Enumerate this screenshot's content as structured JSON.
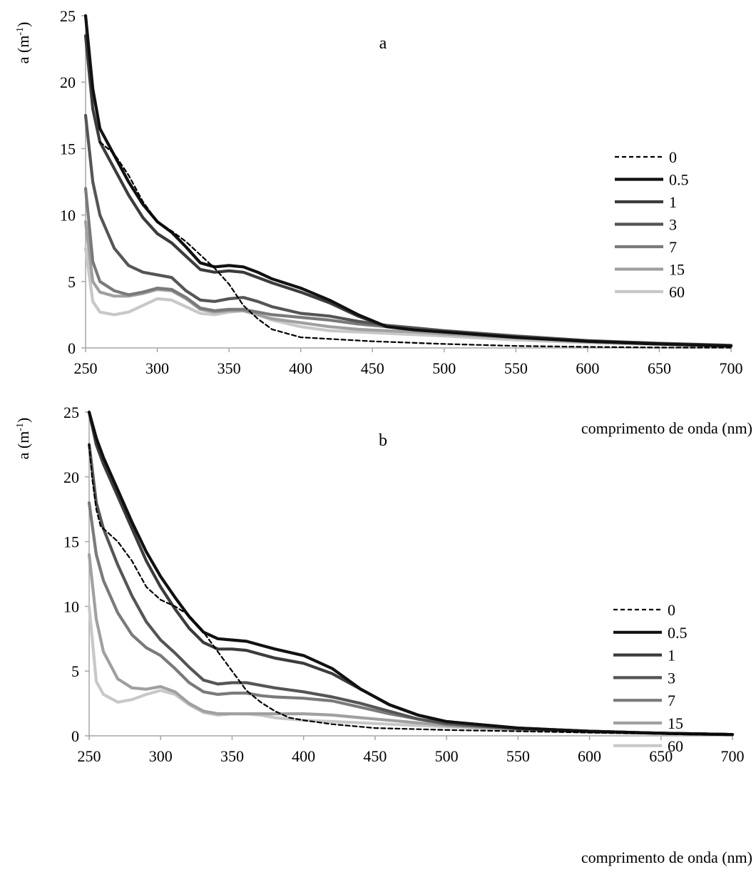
{
  "chart_data": [
    {
      "type": "line",
      "panel_label": "a",
      "xlabel": "comprimento de onda (nm)",
      "ylabel_main": "a (m",
      "ylabel_sup": "-1",
      "ylabel_close": ")",
      "xlim": [
        250,
        700
      ],
      "ylim": [
        0,
        25
      ],
      "x_ticks": [
        250,
        300,
        350,
        400,
        450,
        500,
        550,
        600,
        650,
        700
      ],
      "y_ticks": [
        0,
        5,
        10,
        15,
        20,
        25
      ],
      "legend_position": "right",
      "series": [
        {
          "name": "0",
          "color": "#000000",
          "dash": true,
          "x": [
            260,
            270,
            280,
            290,
            300,
            310,
            320,
            330,
            340,
            350,
            360,
            370,
            380,
            400,
            450,
            500,
            550,
            600,
            650,
            700
          ],
          "y": [
            15.5,
            14.6,
            13.0,
            11.0,
            9.5,
            8.8,
            8.0,
            7.0,
            6.0,
            4.8,
            3.2,
            2.2,
            1.4,
            0.8,
            0.5,
            0.3,
            0.15,
            0.08,
            0.03,
            0.02
          ]
        },
        {
          "name": "0.5",
          "color": "#111111",
          "dash": false,
          "x": [
            250,
            255,
            260,
            270,
            280,
            290,
            300,
            310,
            320,
            330,
            340,
            350,
            360,
            370,
            380,
            400,
            420,
            440,
            460,
            480,
            500,
            550,
            600,
            650,
            700
          ],
          "y": [
            25.0,
            19.5,
            16.5,
            14.5,
            12.5,
            10.8,
            9.5,
            8.7,
            7.6,
            6.4,
            6.1,
            6.2,
            6.1,
            5.7,
            5.2,
            4.5,
            3.6,
            2.5,
            1.6,
            1.35,
            1.2,
            0.8,
            0.5,
            0.3,
            0.15
          ]
        },
        {
          "name": "1",
          "color": "#3c3c3c",
          "dash": false,
          "x": [
            250,
            255,
            260,
            270,
            280,
            290,
            300,
            310,
            320,
            330,
            340,
            350,
            360,
            370,
            380,
            400,
            420,
            440,
            460,
            480,
            500,
            550,
            600,
            650,
            700
          ],
          "y": [
            23.5,
            18.0,
            15.5,
            13.5,
            11.5,
            9.8,
            8.6,
            7.9,
            6.9,
            5.9,
            5.7,
            5.8,
            5.7,
            5.3,
            4.9,
            4.2,
            3.4,
            2.4,
            1.6,
            1.35,
            1.2,
            0.8,
            0.5,
            0.3,
            0.15
          ]
        },
        {
          "name": "3",
          "color": "#555555",
          "dash": false,
          "x": [
            250,
            255,
            260,
            270,
            280,
            290,
            300,
            310,
            320,
            330,
            340,
            350,
            360,
            370,
            380,
            400,
            420,
            440,
            460,
            480,
            500,
            550,
            600,
            650,
            700
          ],
          "y": [
            17.5,
            12.5,
            10.0,
            7.5,
            6.2,
            5.7,
            5.5,
            5.3,
            4.3,
            3.6,
            3.5,
            3.7,
            3.8,
            3.5,
            3.1,
            2.6,
            2.4,
            2.0,
            1.7,
            1.5,
            1.3,
            0.9,
            0.55,
            0.35,
            0.2
          ]
        },
        {
          "name": "7",
          "color": "#7a7a7a",
          "dash": false,
          "x": [
            250,
            255,
            260,
            270,
            280,
            290,
            300,
            310,
            320,
            330,
            340,
            350,
            360,
            370,
            380,
            400,
            420,
            440,
            460,
            480,
            500,
            550,
            600,
            650,
            700
          ],
          "y": [
            12.0,
            6.5,
            5.0,
            4.3,
            4.0,
            4.2,
            4.5,
            4.4,
            3.8,
            3.0,
            2.8,
            2.9,
            2.9,
            2.7,
            2.5,
            2.3,
            2.1,
            1.8,
            1.6,
            1.4,
            1.2,
            0.85,
            0.5,
            0.3,
            0.15
          ]
        },
        {
          "name": "15",
          "color": "#a0a0a0",
          "dash": false,
          "x": [
            250,
            255,
            260,
            270,
            280,
            290,
            300,
            310,
            320,
            330,
            340,
            350,
            360,
            370,
            380,
            400,
            420,
            440,
            460,
            480,
            500,
            550,
            600,
            650,
            700
          ],
          "y": [
            9.5,
            5.0,
            4.2,
            3.9,
            3.9,
            4.1,
            4.4,
            4.3,
            3.7,
            2.9,
            2.7,
            2.8,
            2.8,
            2.5,
            2.2,
            1.9,
            1.6,
            1.4,
            1.3,
            1.2,
            1.05,
            0.75,
            0.45,
            0.3,
            0.15
          ]
        },
        {
          "name": "60",
          "color": "#c8c8c8",
          "dash": false,
          "x": [
            250,
            255,
            260,
            270,
            280,
            290,
            300,
            310,
            320,
            330,
            340,
            350,
            360,
            370,
            380,
            400,
            420,
            440,
            460,
            480,
            500,
            550,
            600,
            650,
            700
          ],
          "y": [
            7.5,
            3.5,
            2.7,
            2.5,
            2.7,
            3.2,
            3.7,
            3.6,
            3.1,
            2.6,
            2.5,
            2.7,
            2.8,
            2.5,
            2.1,
            1.6,
            1.3,
            1.2,
            1.1,
            1.0,
            0.9,
            0.6,
            0.4,
            0.25,
            0.12
          ]
        }
      ]
    },
    {
      "type": "line",
      "panel_label": "b",
      "xlabel": "comprimento de onda (nm)",
      "ylabel_main": "a (m",
      "ylabel_sup": "-1",
      "ylabel_close": ")",
      "xlim": [
        250,
        700
      ],
      "ylim": [
        0,
        25
      ],
      "x_ticks": [
        250,
        300,
        350,
        400,
        450,
        500,
        550,
        600,
        650,
        700
      ],
      "y_ticks": [
        0,
        5,
        10,
        15,
        20,
        25
      ],
      "legend_position": "right",
      "series": [
        {
          "name": "0",
          "color": "#000000",
          "dash": true,
          "x": [
            250,
            252,
            255,
            258,
            262,
            270,
            280,
            290,
            300,
            310,
            320,
            330,
            340,
            350,
            360,
            370,
            380,
            390,
            400,
            420,
            450,
            500,
            550,
            600,
            650,
            700
          ],
          "y": [
            22.5,
            20.0,
            17.5,
            16.2,
            15.8,
            15.0,
            13.5,
            11.5,
            10.5,
            10.0,
            9.3,
            8.0,
            6.5,
            5.0,
            3.5,
            2.6,
            1.9,
            1.4,
            1.2,
            0.9,
            0.6,
            0.45,
            0.35,
            0.25,
            0.15,
            0.1
          ]
        },
        {
          "name": "0.5",
          "color": "#111111",
          "dash": false,
          "x": [
            250,
            255,
            260,
            270,
            280,
            290,
            300,
            310,
            320,
            330,
            340,
            350,
            360,
            370,
            380,
            400,
            420,
            440,
            460,
            480,
            500,
            550,
            600,
            650,
            700
          ],
          "y": [
            25.0,
            23.0,
            21.5,
            19.0,
            16.5,
            14.2,
            12.3,
            10.7,
            9.2,
            8.0,
            7.5,
            7.4,
            7.3,
            7.0,
            6.7,
            6.2,
            5.2,
            3.6,
            2.4,
            1.6,
            1.1,
            0.6,
            0.35,
            0.2,
            0.1
          ]
        },
        {
          "name": "1",
          "color": "#3c3c3c",
          "dash": false,
          "x": [
            250,
            255,
            260,
            270,
            280,
            290,
            300,
            310,
            320,
            330,
            340,
            350,
            360,
            370,
            380,
            400,
            420,
            440,
            460,
            480,
            500,
            550,
            600,
            650,
            700
          ],
          "y": [
            25.0,
            22.5,
            21.0,
            18.5,
            16.0,
            13.5,
            11.5,
            9.8,
            8.3,
            7.2,
            6.7,
            6.7,
            6.6,
            6.3,
            6.0,
            5.6,
            4.8,
            3.6,
            2.4,
            1.6,
            1.1,
            0.6,
            0.35,
            0.2,
            0.1
          ]
        },
        {
          "name": "3",
          "color": "#555555",
          "dash": false,
          "x": [
            250,
            255,
            260,
            270,
            280,
            290,
            300,
            310,
            320,
            330,
            340,
            350,
            360,
            370,
            380,
            400,
            420,
            440,
            460,
            480,
            500,
            550,
            600,
            650,
            700
          ],
          "y": [
            22.5,
            18.0,
            16.0,
            13.2,
            10.8,
            8.8,
            7.4,
            6.4,
            5.3,
            4.3,
            4.0,
            4.1,
            4.1,
            3.9,
            3.7,
            3.4,
            3.0,
            2.5,
            1.9,
            1.3,
            0.95,
            0.55,
            0.35,
            0.2,
            0.1
          ]
        },
        {
          "name": "7",
          "color": "#7a7a7a",
          "dash": false,
          "x": [
            250,
            255,
            260,
            270,
            280,
            290,
            300,
            310,
            320,
            330,
            340,
            350,
            360,
            370,
            380,
            400,
            420,
            440,
            460,
            480,
            500,
            550,
            600,
            650,
            700
          ],
          "y": [
            18.0,
            14.0,
            12.0,
            9.5,
            7.8,
            6.8,
            6.2,
            5.2,
            4.1,
            3.4,
            3.2,
            3.3,
            3.3,
            3.1,
            3.0,
            2.9,
            2.7,
            2.2,
            1.7,
            1.3,
            0.9,
            0.55,
            0.35,
            0.2,
            0.1
          ]
        },
        {
          "name": "15",
          "color": "#a0a0a0",
          "dash": false,
          "x": [
            250,
            255,
            260,
            270,
            280,
            290,
            300,
            310,
            320,
            330,
            340,
            350,
            360,
            370,
            380,
            400,
            420,
            440,
            460,
            480,
            500,
            550,
            600,
            650,
            700
          ],
          "y": [
            14.0,
            9.0,
            6.5,
            4.4,
            3.7,
            3.6,
            3.8,
            3.4,
            2.5,
            1.9,
            1.7,
            1.7,
            1.7,
            1.7,
            1.7,
            1.7,
            1.6,
            1.4,
            1.2,
            1.0,
            0.8,
            0.5,
            0.3,
            0.2,
            0.1
          ]
        },
        {
          "name": "60",
          "color": "#c8c8c8",
          "dash": false,
          "x": [
            250,
            255,
            260,
            270,
            280,
            290,
            300,
            310,
            320,
            330,
            340,
            350,
            360,
            370,
            380,
            400,
            420,
            440,
            460,
            480,
            500,
            550,
            600,
            650,
            700
          ],
          "y": [
            10.0,
            4.2,
            3.2,
            2.6,
            2.8,
            3.2,
            3.5,
            3.2,
            2.4,
            1.8,
            1.6,
            1.7,
            1.7,
            1.6,
            1.4,
            1.2,
            1.1,
            1.0,
            0.9,
            0.8,
            0.7,
            0.45,
            0.3,
            0.2,
            0.1
          ]
        }
      ]
    }
  ]
}
